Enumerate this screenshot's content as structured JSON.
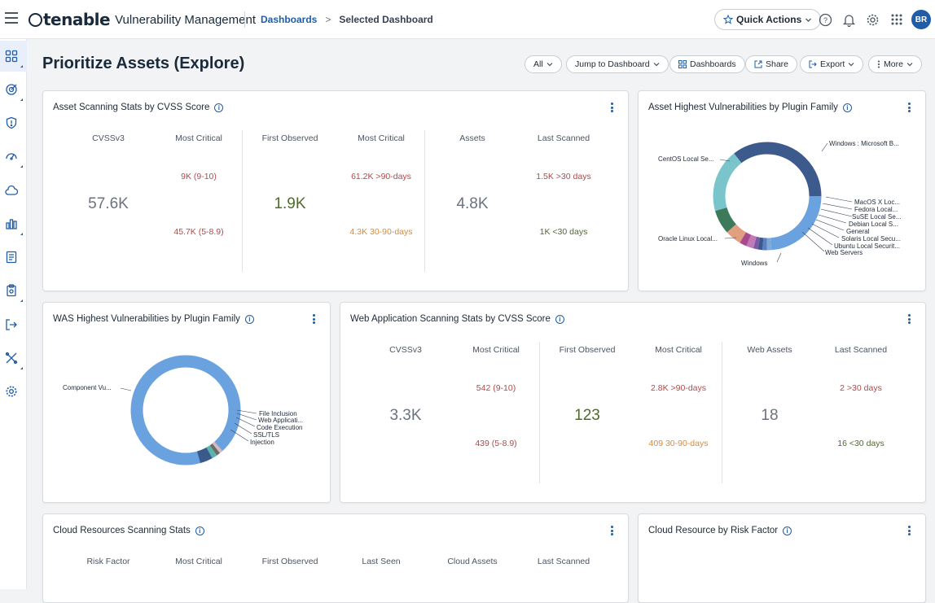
{
  "header": {
    "brand": "tenable",
    "product": "Vulnerability Management",
    "breadcrumb_link": "Dashboards",
    "breadcrumb_sep": ">",
    "breadcrumb_current": "Selected Dashboard",
    "quick_actions": "Quick Actions",
    "avatar_initials": "BR"
  },
  "icons": {
    "menu": "hamburger-icon",
    "star": "star-icon",
    "help": "help-icon",
    "bell": "bell-icon",
    "settings": "gear-icon",
    "apps": "grid-icon"
  },
  "sidenav": [
    "dashboards-icon",
    "target-icon",
    "shield-icon",
    "gauge-icon",
    "cloud-icon",
    "chart-icon",
    "report-icon",
    "clipboard-icon",
    "export-icon",
    "tools-icon",
    "settings-icon"
  ],
  "page": {
    "title": "Prioritize Assets (Explore)",
    "toolbar": {
      "all": "All",
      "jump": "Jump to Dashboard",
      "dashboards": "Dashboards",
      "share": "Share",
      "export": "Export",
      "more": "More"
    }
  },
  "colors": {
    "accent": "#1f5da8",
    "critical_red": "#b04a4a",
    "warning_orange": "#d98a3a",
    "ok_olive": "#4d6b2a"
  },
  "cards": {
    "asset_stats": {
      "title": "Asset Scanning Stats by CVSS Score",
      "col1_h1": "CVSSv3",
      "col1_h2": "Most Critical",
      "col1_big": "57.6K",
      "col1_hi": "9K (9-10)",
      "col1_lo": "45.7K (5-8.9)",
      "col2_h1": "First Observed",
      "col2_h2": "Most Critical",
      "col2_big": "1.9K",
      "col2_hi": "61.2K >90-days",
      "col2_lo": "4.3K 30-90-days",
      "col3_h1": "Assets",
      "col3_h2": "Last Scanned",
      "col3_big": "4.8K",
      "col3_hi": "1.5K >30 days",
      "col3_lo": "1K <30 days"
    },
    "asset_plugin": {
      "title": "Asset Highest Vulnerabilities by Plugin Family",
      "labels": [
        "Windows : Microsoft B...",
        "CentOS Local Se...",
        "MacOS X Loc...",
        "Fedora Local...",
        "SuSE Local Se...",
        "Debian Local S...",
        "General",
        "Solaris Local Secu...",
        "Ubuntu Local Securit...",
        "Web Servers",
        "Oracle Linux Local...",
        "Windows"
      ]
    },
    "was_plugin": {
      "title": "WAS Highest Vulnerabilities by Plugin Family",
      "labels": [
        "Component Vu...",
        "File Inclusion",
        "Web Applicati...",
        "Code Execution",
        "SSL/TLS",
        "Injection"
      ]
    },
    "web_stats": {
      "title": "Web Application Scanning Stats by CVSS Score",
      "col1_h1": "CVSSv3",
      "col1_h2": "Most Critical",
      "col1_big": "3.3K",
      "col1_hi": "542 (9-10)",
      "col1_lo": "439 (5-8.9)",
      "col2_h1": "First Observed",
      "col2_h2": "Most Critical",
      "col2_big": "123",
      "col2_hi": "2.8K >90-days",
      "col2_lo": "409 30-90-days",
      "col3_h1": "Web Assets",
      "col3_h2": "Last Scanned",
      "col3_big": "18",
      "col3_hi": "2 >30 days",
      "col3_lo": "16 <30 days"
    },
    "cloud_stats": {
      "title": "Cloud Resources Scanning Stats",
      "h1": "Risk Factor",
      "h2": "Most Critical",
      "h3": "First Observed",
      "h4": "Last Seen",
      "h5": "Cloud Assets",
      "h6": "Last Scanned"
    },
    "cloud_risk": {
      "title": "Cloud Resource by Risk Factor"
    }
  }
}
